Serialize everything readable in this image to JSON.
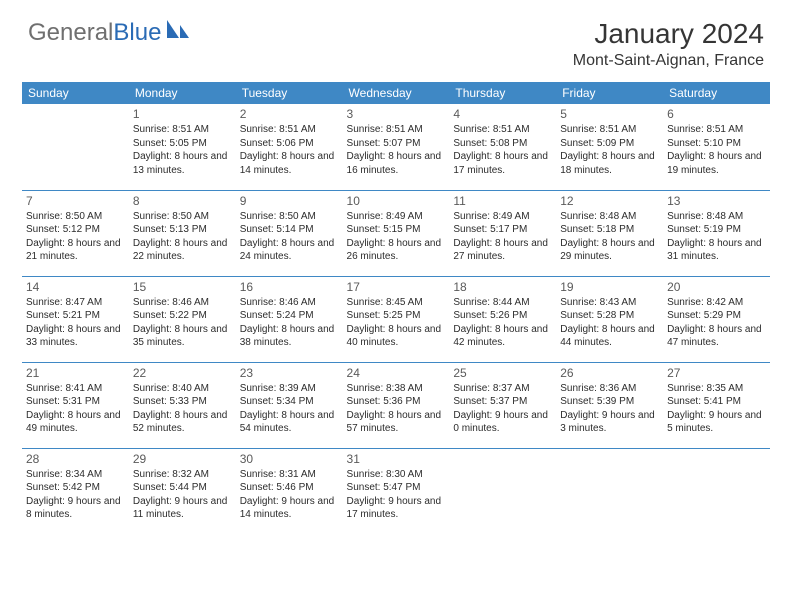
{
  "brand": {
    "part1": "General",
    "part2": "Blue"
  },
  "title": "January 2024",
  "location": "Mont-Saint-Aignan, France",
  "colors": {
    "header_bg": "#3f88c5",
    "header_text": "#ffffff",
    "brand_gray": "#6f6f6f",
    "brand_blue": "#2a6bb5",
    "text": "#2c2c2c",
    "divider": "#3f88c5",
    "background": "#ffffff"
  },
  "day_headers": [
    "Sunday",
    "Monday",
    "Tuesday",
    "Wednesday",
    "Thursday",
    "Friday",
    "Saturday"
  ],
  "weeks": [
    [
      null,
      {
        "n": "1",
        "sr": "8:51 AM",
        "ss": "5:05 PM",
        "dl": "8 hours and 13 minutes."
      },
      {
        "n": "2",
        "sr": "8:51 AM",
        "ss": "5:06 PM",
        "dl": "8 hours and 14 minutes."
      },
      {
        "n": "3",
        "sr": "8:51 AM",
        "ss": "5:07 PM",
        "dl": "8 hours and 16 minutes."
      },
      {
        "n": "4",
        "sr": "8:51 AM",
        "ss": "5:08 PM",
        "dl": "8 hours and 17 minutes."
      },
      {
        "n": "5",
        "sr": "8:51 AM",
        "ss": "5:09 PM",
        "dl": "8 hours and 18 minutes."
      },
      {
        "n": "6",
        "sr": "8:51 AM",
        "ss": "5:10 PM",
        "dl": "8 hours and 19 minutes."
      }
    ],
    [
      {
        "n": "7",
        "sr": "8:50 AM",
        "ss": "5:12 PM",
        "dl": "8 hours and 21 minutes."
      },
      {
        "n": "8",
        "sr": "8:50 AM",
        "ss": "5:13 PM",
        "dl": "8 hours and 22 minutes."
      },
      {
        "n": "9",
        "sr": "8:50 AM",
        "ss": "5:14 PM",
        "dl": "8 hours and 24 minutes."
      },
      {
        "n": "10",
        "sr": "8:49 AM",
        "ss": "5:15 PM",
        "dl": "8 hours and 26 minutes."
      },
      {
        "n": "11",
        "sr": "8:49 AM",
        "ss": "5:17 PM",
        "dl": "8 hours and 27 minutes."
      },
      {
        "n": "12",
        "sr": "8:48 AM",
        "ss": "5:18 PM",
        "dl": "8 hours and 29 minutes."
      },
      {
        "n": "13",
        "sr": "8:48 AM",
        "ss": "5:19 PM",
        "dl": "8 hours and 31 minutes."
      }
    ],
    [
      {
        "n": "14",
        "sr": "8:47 AM",
        "ss": "5:21 PM",
        "dl": "8 hours and 33 minutes."
      },
      {
        "n": "15",
        "sr": "8:46 AM",
        "ss": "5:22 PM",
        "dl": "8 hours and 35 minutes."
      },
      {
        "n": "16",
        "sr": "8:46 AM",
        "ss": "5:24 PM",
        "dl": "8 hours and 38 minutes."
      },
      {
        "n": "17",
        "sr": "8:45 AM",
        "ss": "5:25 PM",
        "dl": "8 hours and 40 minutes."
      },
      {
        "n": "18",
        "sr": "8:44 AM",
        "ss": "5:26 PM",
        "dl": "8 hours and 42 minutes."
      },
      {
        "n": "19",
        "sr": "8:43 AM",
        "ss": "5:28 PM",
        "dl": "8 hours and 44 minutes."
      },
      {
        "n": "20",
        "sr": "8:42 AM",
        "ss": "5:29 PM",
        "dl": "8 hours and 47 minutes."
      }
    ],
    [
      {
        "n": "21",
        "sr": "8:41 AM",
        "ss": "5:31 PM",
        "dl": "8 hours and 49 minutes."
      },
      {
        "n": "22",
        "sr": "8:40 AM",
        "ss": "5:33 PM",
        "dl": "8 hours and 52 minutes."
      },
      {
        "n": "23",
        "sr": "8:39 AM",
        "ss": "5:34 PM",
        "dl": "8 hours and 54 minutes."
      },
      {
        "n": "24",
        "sr": "8:38 AM",
        "ss": "5:36 PM",
        "dl": "8 hours and 57 minutes."
      },
      {
        "n": "25",
        "sr": "8:37 AM",
        "ss": "5:37 PM",
        "dl": "9 hours and 0 minutes."
      },
      {
        "n": "26",
        "sr": "8:36 AM",
        "ss": "5:39 PM",
        "dl": "9 hours and 3 minutes."
      },
      {
        "n": "27",
        "sr": "8:35 AM",
        "ss": "5:41 PM",
        "dl": "9 hours and 5 minutes."
      }
    ],
    [
      {
        "n": "28",
        "sr": "8:34 AM",
        "ss": "5:42 PM",
        "dl": "9 hours and 8 minutes."
      },
      {
        "n": "29",
        "sr": "8:32 AM",
        "ss": "5:44 PM",
        "dl": "9 hours and 11 minutes."
      },
      {
        "n": "30",
        "sr": "8:31 AM",
        "ss": "5:46 PM",
        "dl": "9 hours and 14 minutes."
      },
      {
        "n": "31",
        "sr": "8:30 AM",
        "ss": "5:47 PM",
        "dl": "9 hours and 17 minutes."
      },
      null,
      null,
      null
    ]
  ],
  "labels": {
    "sunrise": "Sunrise:",
    "sunset": "Sunset:",
    "daylight": "Daylight:"
  }
}
